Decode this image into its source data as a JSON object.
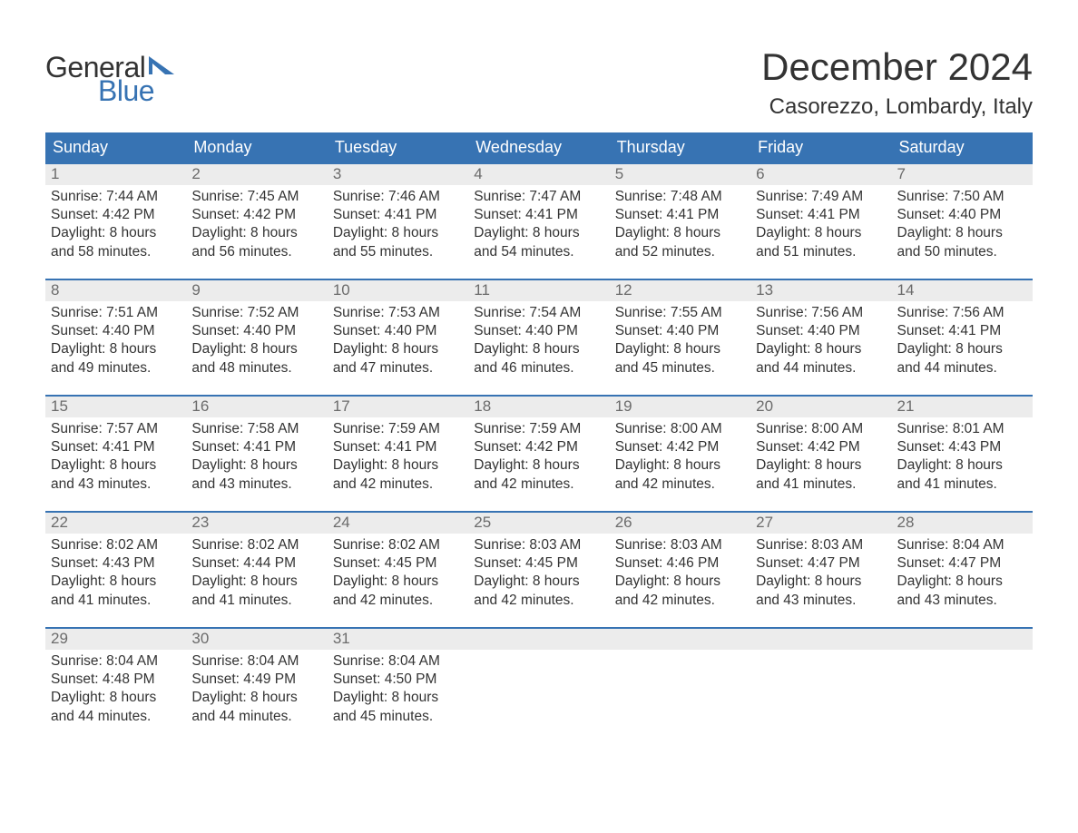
{
  "logo": {
    "text1": "General",
    "text2": "Blue",
    "accent_color": "#3773b3"
  },
  "title": "December 2024",
  "location": "Casorezzo, Lombardy, Italy",
  "colors": {
    "header_bg": "#3773b3",
    "header_text": "#ffffff",
    "daynum_bg": "#ececec",
    "daynum_text": "#6b6b6b",
    "body_text": "#333333",
    "week_divider": "#3773b3",
    "page_bg": "#ffffff"
  },
  "font": {
    "family": "Arial",
    "title_size_pt": 32,
    "location_size_pt": 18,
    "weekday_size_pt": 14,
    "body_size_pt": 12
  },
  "layout": {
    "columns": 7,
    "rows": 5,
    "first_weekday": "Sunday"
  },
  "weekdays": [
    "Sunday",
    "Monday",
    "Tuesday",
    "Wednesday",
    "Thursday",
    "Friday",
    "Saturday"
  ],
  "weeks": [
    [
      {
        "day": 1,
        "sunrise": "7:44 AM",
        "sunset": "4:42 PM",
        "daylight": "8 hours and 58 minutes."
      },
      {
        "day": 2,
        "sunrise": "7:45 AM",
        "sunset": "4:42 PM",
        "daylight": "8 hours and 56 minutes."
      },
      {
        "day": 3,
        "sunrise": "7:46 AM",
        "sunset": "4:41 PM",
        "daylight": "8 hours and 55 minutes."
      },
      {
        "day": 4,
        "sunrise": "7:47 AM",
        "sunset": "4:41 PM",
        "daylight": "8 hours and 54 minutes."
      },
      {
        "day": 5,
        "sunrise": "7:48 AM",
        "sunset": "4:41 PM",
        "daylight": "8 hours and 52 minutes."
      },
      {
        "day": 6,
        "sunrise": "7:49 AM",
        "sunset": "4:41 PM",
        "daylight": "8 hours and 51 minutes."
      },
      {
        "day": 7,
        "sunrise": "7:50 AM",
        "sunset": "4:40 PM",
        "daylight": "8 hours and 50 minutes."
      }
    ],
    [
      {
        "day": 8,
        "sunrise": "7:51 AM",
        "sunset": "4:40 PM",
        "daylight": "8 hours and 49 minutes."
      },
      {
        "day": 9,
        "sunrise": "7:52 AM",
        "sunset": "4:40 PM",
        "daylight": "8 hours and 48 minutes."
      },
      {
        "day": 10,
        "sunrise": "7:53 AM",
        "sunset": "4:40 PM",
        "daylight": "8 hours and 47 minutes."
      },
      {
        "day": 11,
        "sunrise": "7:54 AM",
        "sunset": "4:40 PM",
        "daylight": "8 hours and 46 minutes."
      },
      {
        "day": 12,
        "sunrise": "7:55 AM",
        "sunset": "4:40 PM",
        "daylight": "8 hours and 45 minutes."
      },
      {
        "day": 13,
        "sunrise": "7:56 AM",
        "sunset": "4:40 PM",
        "daylight": "8 hours and 44 minutes."
      },
      {
        "day": 14,
        "sunrise": "7:56 AM",
        "sunset": "4:41 PM",
        "daylight": "8 hours and 44 minutes."
      }
    ],
    [
      {
        "day": 15,
        "sunrise": "7:57 AM",
        "sunset": "4:41 PM",
        "daylight": "8 hours and 43 minutes."
      },
      {
        "day": 16,
        "sunrise": "7:58 AM",
        "sunset": "4:41 PM",
        "daylight": "8 hours and 43 minutes."
      },
      {
        "day": 17,
        "sunrise": "7:59 AM",
        "sunset": "4:41 PM",
        "daylight": "8 hours and 42 minutes."
      },
      {
        "day": 18,
        "sunrise": "7:59 AM",
        "sunset": "4:42 PM",
        "daylight": "8 hours and 42 minutes."
      },
      {
        "day": 19,
        "sunrise": "8:00 AM",
        "sunset": "4:42 PM",
        "daylight": "8 hours and 42 minutes."
      },
      {
        "day": 20,
        "sunrise": "8:00 AM",
        "sunset": "4:42 PM",
        "daylight": "8 hours and 41 minutes."
      },
      {
        "day": 21,
        "sunrise": "8:01 AM",
        "sunset": "4:43 PM",
        "daylight": "8 hours and 41 minutes."
      }
    ],
    [
      {
        "day": 22,
        "sunrise": "8:02 AM",
        "sunset": "4:43 PM",
        "daylight": "8 hours and 41 minutes."
      },
      {
        "day": 23,
        "sunrise": "8:02 AM",
        "sunset": "4:44 PM",
        "daylight": "8 hours and 41 minutes."
      },
      {
        "day": 24,
        "sunrise": "8:02 AM",
        "sunset": "4:45 PM",
        "daylight": "8 hours and 42 minutes."
      },
      {
        "day": 25,
        "sunrise": "8:03 AM",
        "sunset": "4:45 PM",
        "daylight": "8 hours and 42 minutes."
      },
      {
        "day": 26,
        "sunrise": "8:03 AM",
        "sunset": "4:46 PM",
        "daylight": "8 hours and 42 minutes."
      },
      {
        "day": 27,
        "sunrise": "8:03 AM",
        "sunset": "4:47 PM",
        "daylight": "8 hours and 43 minutes."
      },
      {
        "day": 28,
        "sunrise": "8:04 AM",
        "sunset": "4:47 PM",
        "daylight": "8 hours and 43 minutes."
      }
    ],
    [
      {
        "day": 29,
        "sunrise": "8:04 AM",
        "sunset": "4:48 PM",
        "daylight": "8 hours and 44 minutes."
      },
      {
        "day": 30,
        "sunrise": "8:04 AM",
        "sunset": "4:49 PM",
        "daylight": "8 hours and 44 minutes."
      },
      {
        "day": 31,
        "sunrise": "8:04 AM",
        "sunset": "4:50 PM",
        "daylight": "8 hours and 45 minutes."
      },
      null,
      null,
      null,
      null
    ]
  ],
  "labels": {
    "sunrise": "Sunrise:",
    "sunset": "Sunset:",
    "daylight": "Daylight:"
  }
}
